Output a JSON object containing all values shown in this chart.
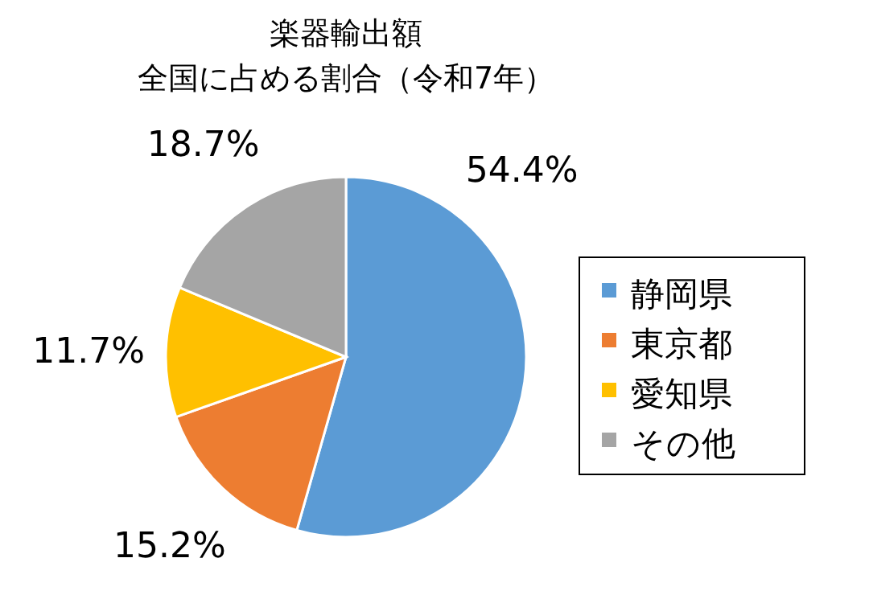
{
  "chart_data": {
    "type": "pie",
    "title": "楽器輸出額",
    "subtitle": "全国に占める割合（令和7年）",
    "categories": [
      "静岡県",
      "東京都",
      "愛知県",
      "その他"
    ],
    "values": [
      54.4,
      15.2,
      11.7,
      18.7
    ],
    "colors": [
      "#5b9bd5",
      "#ed7d31",
      "#ffc000",
      "#a5a5a5"
    ],
    "value_labels": [
      "54.4%",
      "15.2%",
      "11.7%",
      "18.7%"
    ],
    "legend": "right"
  }
}
